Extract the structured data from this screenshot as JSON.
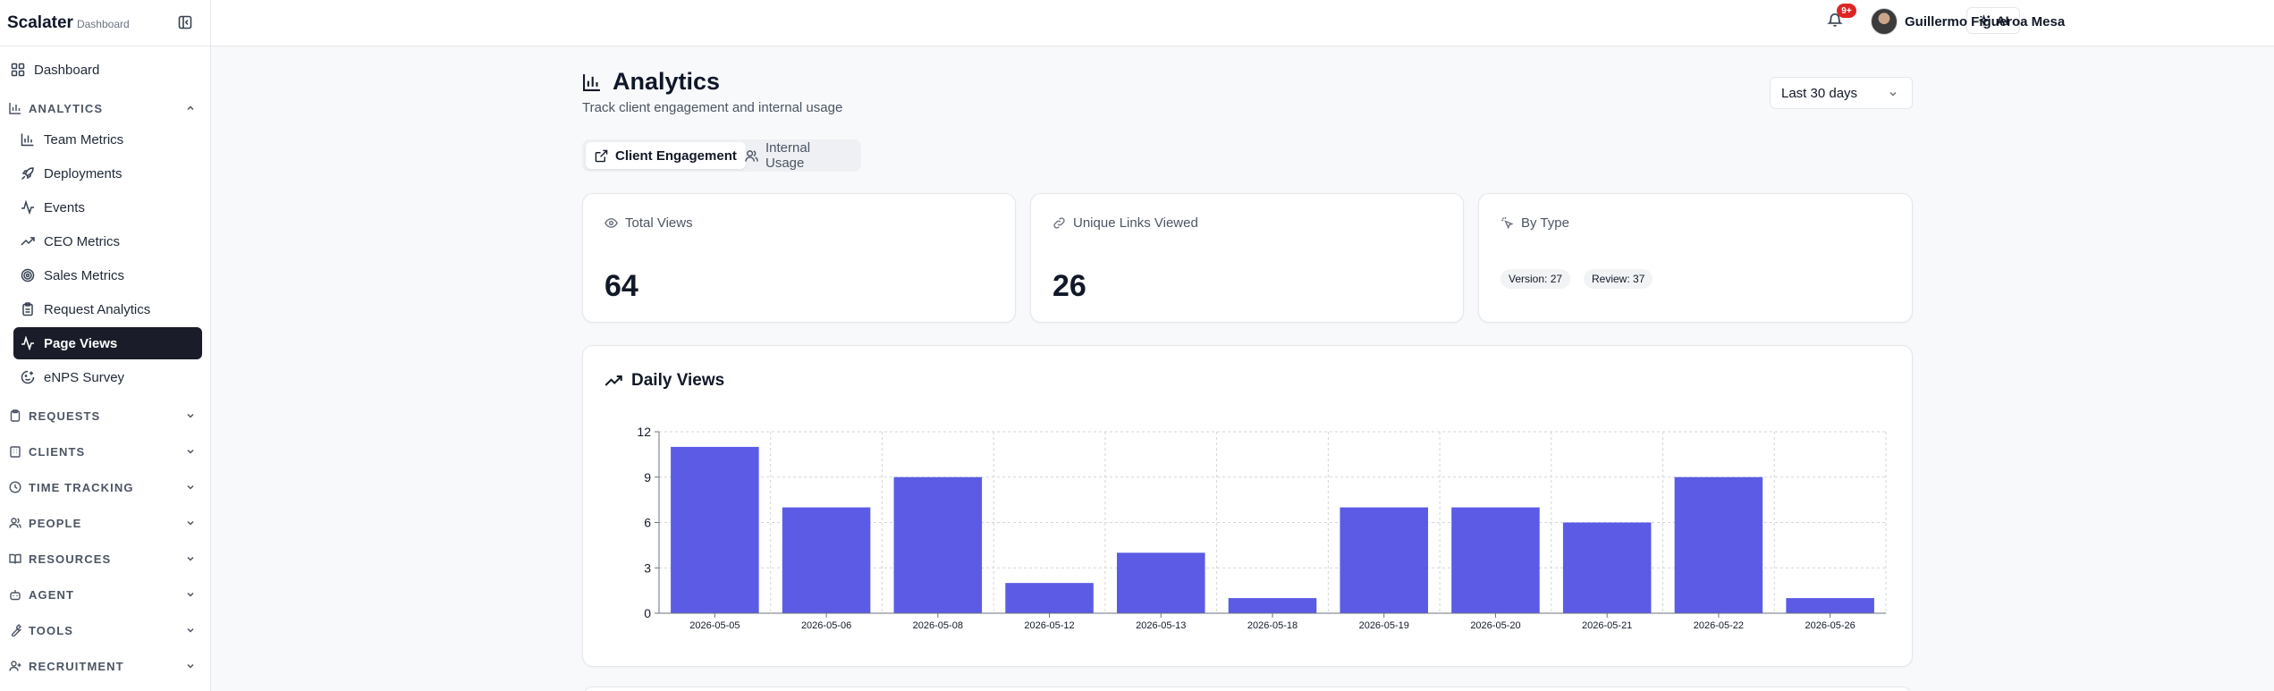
{
  "app": {
    "name": "Scalater",
    "subtitle": "Dashboard"
  },
  "sidebar": {
    "top_item": "Dashboard",
    "analytics": {
      "label": "ANALYTICS",
      "items": [
        {
          "label": "Team Metrics",
          "icon": "bar-chart-icon"
        },
        {
          "label": "Deployments",
          "icon": "rocket-icon"
        },
        {
          "label": "Events",
          "icon": "activity-icon"
        },
        {
          "label": "CEO Metrics",
          "icon": "trending-up-icon"
        },
        {
          "label": "Sales Metrics",
          "icon": "target-icon"
        },
        {
          "label": "Request Analytics",
          "icon": "clipboard-icon"
        },
        {
          "label": "Page Views",
          "icon": "activity-icon",
          "active": true
        },
        {
          "label": "eNPS Survey",
          "icon": "smile-icon"
        }
      ]
    },
    "sections": [
      {
        "label": "REQUESTS",
        "icon": "clipboard-icon"
      },
      {
        "label": "CLIENTS",
        "icon": "building-icon"
      },
      {
        "label": "TIME TRACKING",
        "icon": "clock-icon"
      },
      {
        "label": "PEOPLE",
        "icon": "users-icon"
      },
      {
        "label": "RESOURCES",
        "icon": "book-icon"
      },
      {
        "label": "AGENT",
        "icon": "bot-icon"
      },
      {
        "label": "TOOLS",
        "icon": "wrench-icon"
      },
      {
        "label": "RECRUITMENT",
        "icon": "user-plus-icon"
      }
    ]
  },
  "topbar": {
    "ai_label": "AI",
    "notification_count": "9+",
    "user_name": "Guillermo Figueroa Mesa"
  },
  "page": {
    "title": "Analytics",
    "subtitle": "Track client engagement and internal usage",
    "date_range": "Last 30 days",
    "tabs": [
      {
        "label": "Client Engagement",
        "active": true
      },
      {
        "label": "Internal Usage",
        "active": false
      }
    ]
  },
  "stats": {
    "total_views": {
      "label": "Total Views",
      "value": "64"
    },
    "unique_links": {
      "label": "Unique Links Viewed",
      "value": "26"
    },
    "by_type": {
      "label": "By Type",
      "pills": [
        "Version: 27",
        "Review: 37"
      ]
    }
  },
  "colors": {
    "bar": "#5b5be6",
    "active_nav": "#1a1d29",
    "badge": "#dc2626"
  },
  "chart_data": {
    "type": "bar",
    "title": "Daily Views",
    "categories": [
      "2026-05-05",
      "2026-05-06",
      "2026-05-08",
      "2026-05-12",
      "2026-05-13",
      "2026-05-18",
      "2026-05-19",
      "2026-05-20",
      "2026-05-21",
      "2026-05-22",
      "2026-05-26"
    ],
    "values": [
      11,
      7,
      9,
      2,
      4,
      1,
      7,
      7,
      6,
      9,
      1
    ],
    "ylim": [
      0,
      12
    ],
    "yticks": [
      0,
      3,
      6,
      9,
      12
    ],
    "grid": true,
    "xlabel": "",
    "ylabel": ""
  }
}
